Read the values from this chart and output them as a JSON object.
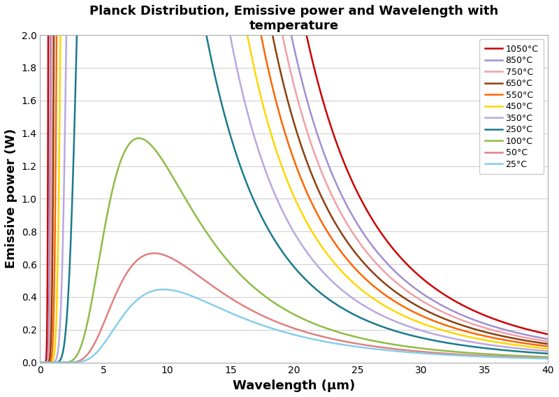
{
  "title": "Planck Distribution, Emissive power and Wavelength with\ntemperature",
  "xlabel": "Wavelength (μm)",
  "ylabel": "Emissive power (W)",
  "xlim": [
    0,
    40
  ],
  "ylim": [
    0,
    2
  ],
  "temperatures_C": [
    1050,
    850,
    750,
    650,
    550,
    450,
    350,
    250,
    100,
    50,
    25
  ],
  "colors": [
    "#cc0000",
    "#a090d0",
    "#f0a0a8",
    "#8B4010",
    "#ff6600",
    "#ffd700",
    "#b8a8e0",
    "#1a7a8a",
    "#8fbc45",
    "#e08080",
    "#87ceeb"
  ],
  "labels": [
    "1050°C",
    "850°C",
    "750°C",
    "650°C",
    "550°C",
    "450°C",
    "350°C",
    "250°C",
    "100°C",
    "50°C",
    "25°C"
  ],
  "yticks": [
    0,
    0.2,
    0.4,
    0.6,
    0.8,
    1.0,
    1.2,
    1.4,
    1.6,
    1.8,
    2.0
  ],
  "xticks": [
    0,
    5,
    10,
    15,
    20,
    25,
    30,
    35,
    40
  ],
  "background_color": "#ffffff",
  "grid_color": "#d0d0d0",
  "linewidth": 1.8
}
